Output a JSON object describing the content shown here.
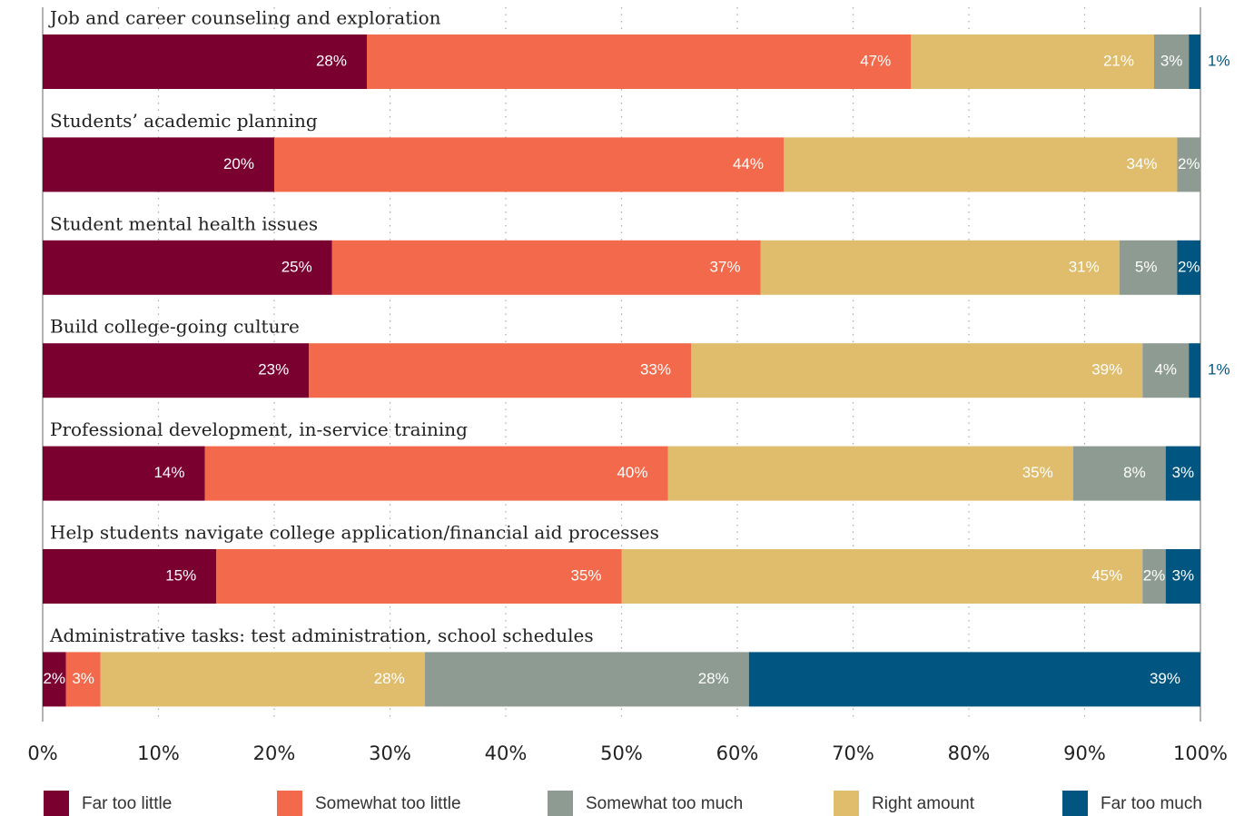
{
  "chart_data": {
    "type": "stacked-barh",
    "categories": [
      "Job and career counseling and exploration",
      "Students’ academic planning",
      "Student mental health issues",
      "Build college-going culture",
      "Professional development, in-service training",
      "Help students navigate college application/financial aid processes",
      "Administrative tasks: test administration, school schedules"
    ],
    "series": [
      {
        "name": "Far too little",
        "color": "#7a0030",
        "values": [
          28,
          20,
          25,
          23,
          14,
          15,
          2
        ],
        "value_labels": [
          "28%",
          "20%",
          "25%",
          "23%",
          "14%",
          "15%",
          "2%"
        ]
      },
      {
        "name": "Somewhat too little",
        "color": "#f26a4b",
        "values": [
          47,
          44,
          37,
          33,
          40,
          35,
          3
        ],
        "value_labels": [
          "47%",
          "44%",
          "37%",
          "33%",
          "40%",
          "35%",
          "3%"
        ]
      },
      {
        "name": "Somewhat too much",
        "color": "#8e9b93",
        "values": [
          3,
          2,
          5,
          4,
          8,
          2,
          28
        ],
        "value_labels": [
          "3%",
          "2%",
          "5%",
          "4%",
          "8%",
          "2%",
          "28%"
        ]
      },
      {
        "name": "Right amount",
        "color": "#dfbd6c",
        "values": [
          21,
          34,
          31,
          39,
          35,
          45,
          28
        ],
        "value_labels": [
          "21%",
          "34%",
          "31%",
          "39%",
          "35%",
          "45%",
          "28%"
        ]
      },
      {
        "name": "Far too much",
        "color": "#005581",
        "values": [
          1,
          null,
          2,
          1,
          3,
          3,
          39
        ],
        "value_labels": [
          "1%",
          null,
          "2%",
          "1%",
          "3%",
          "3%",
          "39%"
        ]
      }
    ],
    "xlim": [
      0,
      100
    ],
    "xticks": [
      {
        "value": 0,
        "label": "0%"
      },
      {
        "value": 10,
        "label": "10%"
      },
      {
        "value": 20,
        "label": "20%"
      },
      {
        "value": 30,
        "label": "30%"
      },
      {
        "value": 40,
        "label": "40%"
      },
      {
        "value": 50,
        "label": "50%"
      },
      {
        "value": 60,
        "label": "60%"
      },
      {
        "value": 70,
        "label": "70%"
      },
      {
        "value": 80,
        "label": "80%"
      },
      {
        "value": 90,
        "label": "90%"
      },
      {
        "value": 100,
        "label": "100%"
      }
    ],
    "grid": true
  }
}
